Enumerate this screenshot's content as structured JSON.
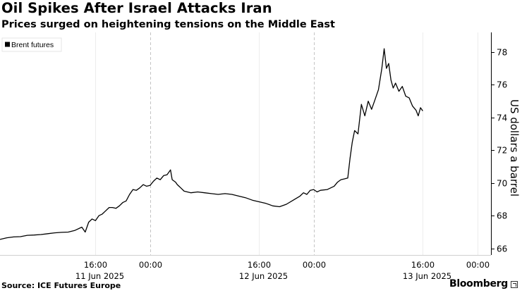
{
  "header": {
    "title": "Oil Spikes After Israel Attacks Iran",
    "subtitle": "Prices surged on heightening tensions on the Middle East"
  },
  "footer": {
    "source": "Source: ICE Futures Europe",
    "brand": "Bloomberg"
  },
  "chart_data": {
    "type": "line",
    "title": "Oil Spikes After Israel Attacks Iran",
    "subtitle": "Prices surged on heightening tensions on the Middle East",
    "ylabel": "US dollars a barrel",
    "xlabel": "",
    "ylim": [
      65.6,
      79.2
    ],
    "yticks": [
      66,
      68,
      70,
      72,
      74,
      76,
      78
    ],
    "y_axis_side": "right",
    "grid": "vertical dashed at midnight, light solid at other time ticks",
    "legend": {
      "placement": "top-left",
      "entries": [
        "Brent futures"
      ]
    },
    "x_tick_labels": [
      {
        "time": "2025-06-11 16:00",
        "label": "16:00",
        "date_label": "",
        "divider": false
      },
      {
        "time": "2025-06-12 00:00",
        "label": "00:00",
        "date_label": "11 Jun 2025",
        "divider": true
      },
      {
        "time": "2025-06-12 16:00",
        "label": "16:00",
        "date_label": "",
        "divider": false
      },
      {
        "time": "2025-06-13 00:00",
        "label": "00:00",
        "date_label": "12 Jun 2025",
        "divider": true
      },
      {
        "time": "2025-06-13 16:00",
        "label": "16:00",
        "date_label": "",
        "divider": false
      },
      {
        "time": "2025-06-14 00:00",
        "label": "00:00",
        "date_label": "13 Jun 2025",
        "divider": false
      }
    ],
    "x_start": "2025-06-11 02:00",
    "x_end": "2025-06-14 02:00",
    "series": [
      {
        "name": "Brent futures",
        "color": "#000000",
        "points": [
          [
            "2025-06-11 02:00",
            66.55
          ],
          [
            "2025-06-11 03:00",
            66.65
          ],
          [
            "2025-06-11 04:00",
            66.7
          ],
          [
            "2025-06-11 05:00",
            66.72
          ],
          [
            "2025-06-11 06:00",
            66.8
          ],
          [
            "2025-06-11 07:00",
            66.82
          ],
          [
            "2025-06-11 08:00",
            66.85
          ],
          [
            "2025-06-11 09:00",
            66.9
          ],
          [
            "2025-06-11 10:00",
            66.95
          ],
          [
            "2025-06-11 11:00",
            66.98
          ],
          [
            "2025-06-11 12:00",
            67.0
          ],
          [
            "2025-06-11 13:00",
            67.1
          ],
          [
            "2025-06-11 14:00",
            67.3
          ],
          [
            "2025-06-11 14:30",
            67.0
          ],
          [
            "2025-06-11 15:00",
            67.6
          ],
          [
            "2025-06-11 15:30",
            67.8
          ],
          [
            "2025-06-11 16:00",
            67.7
          ],
          [
            "2025-06-11 16:30",
            68.0
          ],
          [
            "2025-06-11 17:00",
            68.1
          ],
          [
            "2025-06-11 17:30",
            68.3
          ],
          [
            "2025-06-11 18:00",
            68.5
          ],
          [
            "2025-06-11 18:30",
            68.5
          ],
          [
            "2025-06-11 19:00",
            68.45
          ],
          [
            "2025-06-11 19:30",
            68.6
          ],
          [
            "2025-06-11 20:00",
            68.8
          ],
          [
            "2025-06-11 20:30",
            68.9
          ],
          [
            "2025-06-11 21:00",
            69.3
          ],
          [
            "2025-06-11 21:30",
            69.6
          ],
          [
            "2025-06-11 22:00",
            69.55
          ],
          [
            "2025-06-11 22:30",
            69.7
          ],
          [
            "2025-06-11 23:00",
            69.9
          ],
          [
            "2025-06-11 23:30",
            69.8
          ],
          [
            "2025-06-12 00:00",
            69.85
          ],
          [
            "2025-06-12 00:30",
            70.1
          ],
          [
            "2025-06-12 01:00",
            70.3
          ],
          [
            "2025-06-12 01:30",
            70.2
          ],
          [
            "2025-06-12 02:00",
            70.45
          ],
          [
            "2025-06-12 02:30",
            70.5
          ],
          [
            "2025-06-12 03:00",
            70.8
          ],
          [
            "2025-06-12 03:15",
            70.2
          ],
          [
            "2025-06-12 03:45",
            70.05
          ],
          [
            "2025-06-12 04:00",
            69.9
          ],
          [
            "2025-06-12 04:30",
            69.7
          ],
          [
            "2025-06-12 05:00",
            69.5
          ],
          [
            "2025-06-12 06:00",
            69.4
          ],
          [
            "2025-06-12 07:00",
            69.45
          ],
          [
            "2025-06-12 08:00",
            69.4
          ],
          [
            "2025-06-12 09:00",
            69.35
          ],
          [
            "2025-06-12 10:00",
            69.3
          ],
          [
            "2025-06-12 11:00",
            69.35
          ],
          [
            "2025-06-12 12:00",
            69.3
          ],
          [
            "2025-06-12 13:00",
            69.2
          ],
          [
            "2025-06-12 14:00",
            69.1
          ],
          [
            "2025-06-12 15:00",
            68.95
          ],
          [
            "2025-06-12 16:00",
            68.85
          ],
          [
            "2025-06-12 17:00",
            68.75
          ],
          [
            "2025-06-12 18:00",
            68.6
          ],
          [
            "2025-06-12 19:00",
            68.55
          ],
          [
            "2025-06-12 20:00",
            68.7
          ],
          [
            "2025-06-12 21:00",
            68.95
          ],
          [
            "2025-06-12 22:00",
            69.2
          ],
          [
            "2025-06-12 22:30",
            69.4
          ],
          [
            "2025-06-12 23:00",
            69.3
          ],
          [
            "2025-06-12 23:30",
            69.55
          ],
          [
            "2025-06-13 00:00",
            69.6
          ],
          [
            "2025-06-13 00:30",
            69.45
          ],
          [
            "2025-06-13 01:00",
            69.55
          ],
          [
            "2025-06-13 02:00",
            69.6
          ],
          [
            "2025-06-13 03:00",
            69.8
          ],
          [
            "2025-06-13 03:30",
            70.05
          ],
          [
            "2025-06-13 04:00",
            70.2
          ],
          [
            "2025-06-13 04:30",
            70.25
          ],
          [
            "2025-06-13 05:00",
            70.3
          ],
          [
            "2025-06-13 05:20",
            71.5
          ],
          [
            "2025-06-13 05:40",
            72.5
          ],
          [
            "2025-06-13 06:00",
            73.2
          ],
          [
            "2025-06-13 06:30",
            73.0
          ],
          [
            "2025-06-13 07:00",
            74.8
          ],
          [
            "2025-06-13 07:30",
            74.1
          ],
          [
            "2025-06-13 08:00",
            75.0
          ],
          [
            "2025-06-13 08:30",
            74.5
          ],
          [
            "2025-06-13 09:00",
            75.1
          ],
          [
            "2025-06-13 09:30",
            75.7
          ],
          [
            "2025-06-13 10:00",
            77.0
          ],
          [
            "2025-06-13 10:20",
            78.2
          ],
          [
            "2025-06-13 10:40",
            77.0
          ],
          [
            "2025-06-13 11:00",
            77.3
          ],
          [
            "2025-06-13 11:20",
            76.3
          ],
          [
            "2025-06-13 11:40",
            75.8
          ],
          [
            "2025-06-13 12:00",
            76.1
          ],
          [
            "2025-06-13 12:30",
            75.6
          ],
          [
            "2025-06-13 13:00",
            75.9
          ],
          [
            "2025-06-13 13:30",
            75.3
          ],
          [
            "2025-06-13 14:00",
            75.2
          ],
          [
            "2025-06-13 14:30",
            74.7
          ],
          [
            "2025-06-13 15:00",
            74.45
          ],
          [
            "2025-06-13 15:20",
            74.1
          ],
          [
            "2025-06-13 15:40",
            74.6
          ],
          [
            "2025-06-13 16:00",
            74.4
          ]
        ]
      }
    ]
  }
}
